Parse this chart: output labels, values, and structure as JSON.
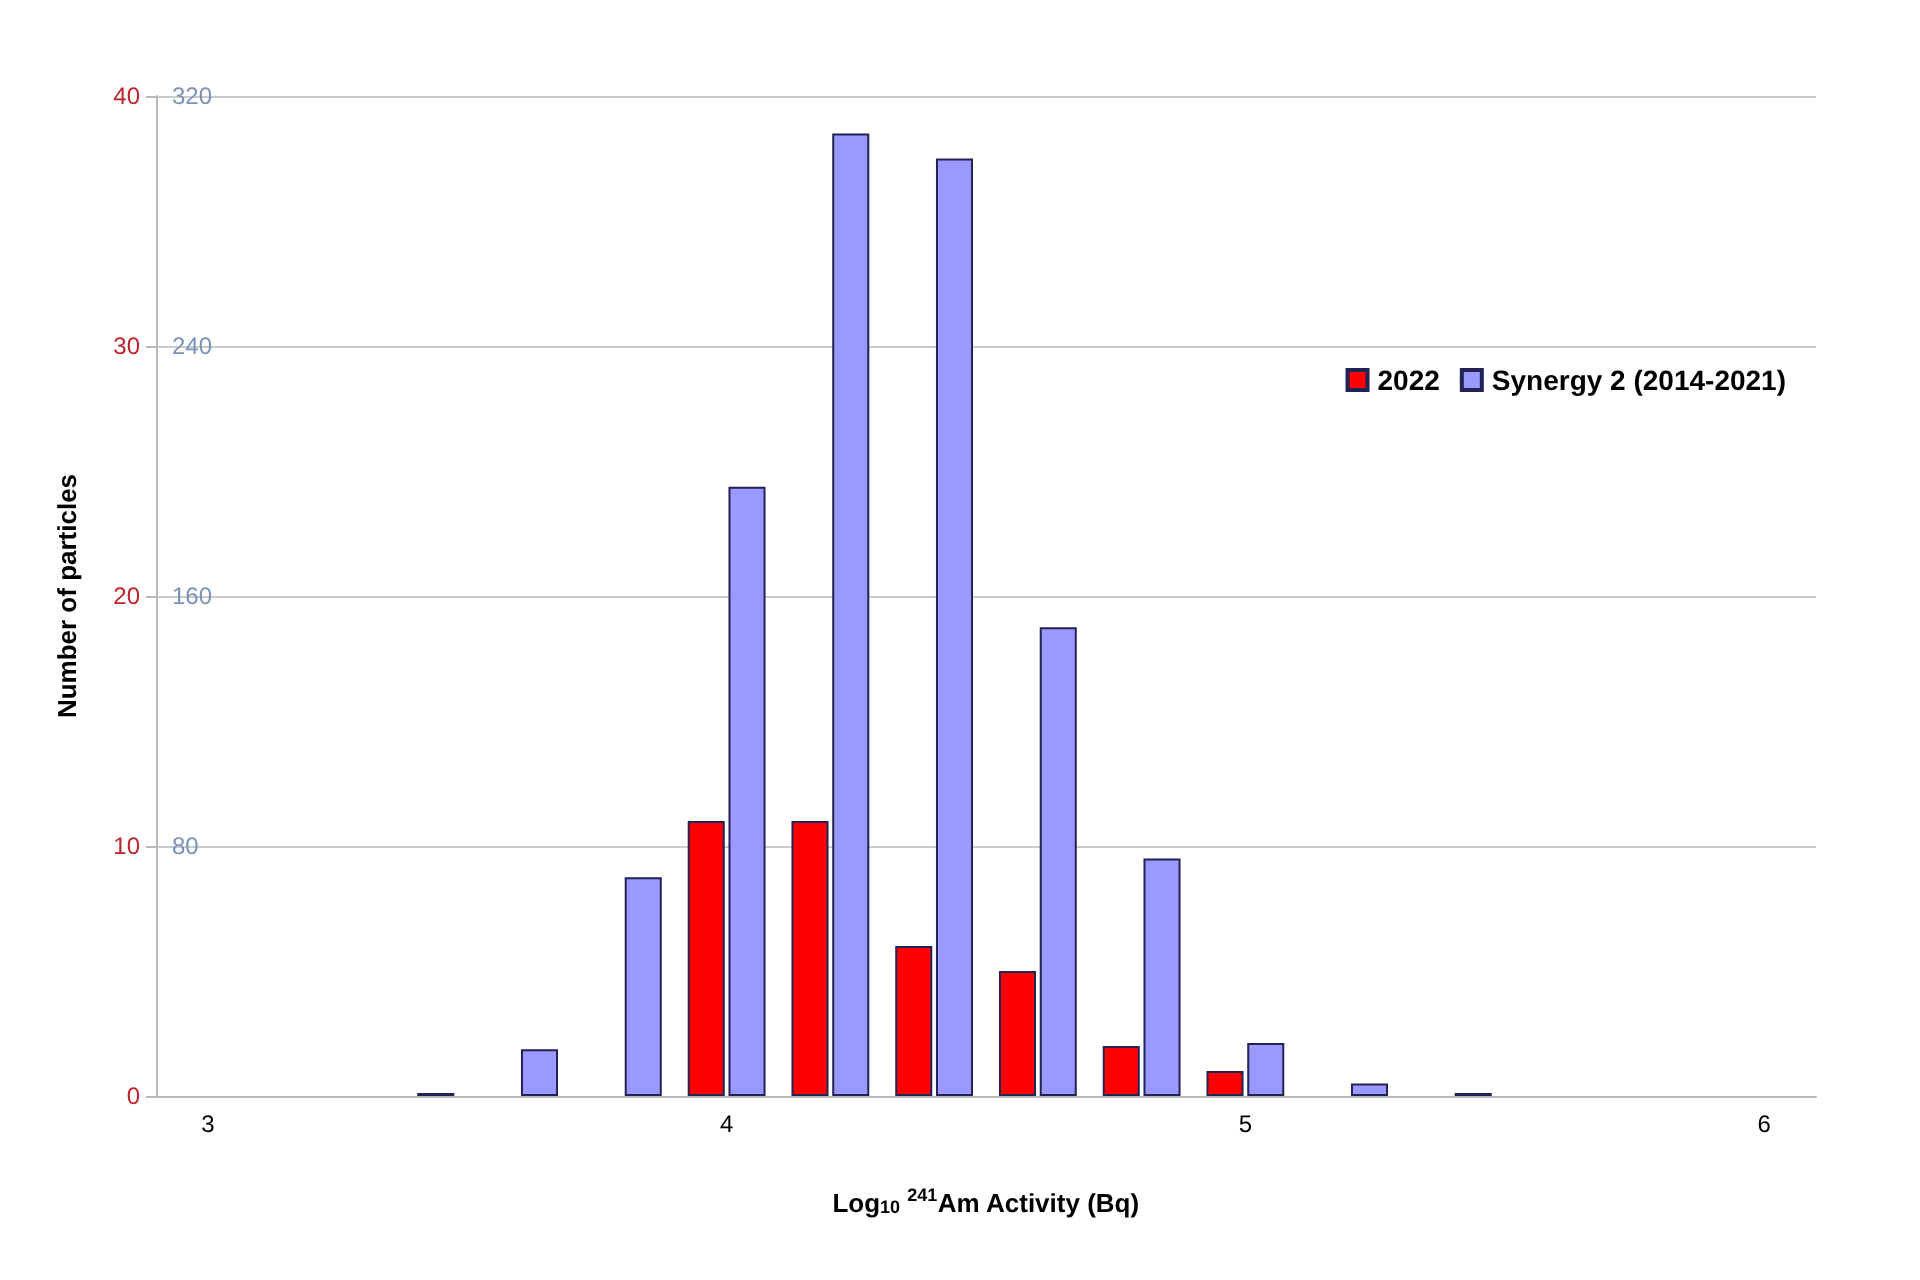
{
  "chart_data": {
    "type": "bar",
    "xlabel": "Log$_{10}$ $^{241}$Am Activity (Bq)",
    "ylabel": "Number of particles",
    "categories": [
      "3",
      null,
      null,
      null,
      null,
      "4",
      null,
      null,
      null,
      null,
      "5",
      null,
      null,
      null,
      null,
      "6"
    ],
    "series": [
      {
        "name": "2022",
        "color": "#ff0000",
        "values": [
          0,
          0,
          0,
          0,
          0,
          11,
          11,
          6,
          5,
          2,
          1,
          0,
          0,
          0,
          0,
          0
        ]
      },
      {
        "name": "Synergy 2 (2014-2021)",
        "color": "#9999ff",
        "axis": "y2",
        "values": [
          0,
          0,
          1,
          15,
          70,
          195,
          308,
          300,
          150,
          76,
          17,
          4,
          1,
          0,
          0,
          0
        ]
      }
    ],
    "ylim": [
      0,
      40
    ],
    "yticks": [
      0,
      10,
      20,
      30,
      40
    ],
    "y2lim": [
      0,
      320
    ],
    "y2ticks": [
      80,
      160,
      240,
      320
    ],
    "grid": "y",
    "legend": "top right"
  }
}
